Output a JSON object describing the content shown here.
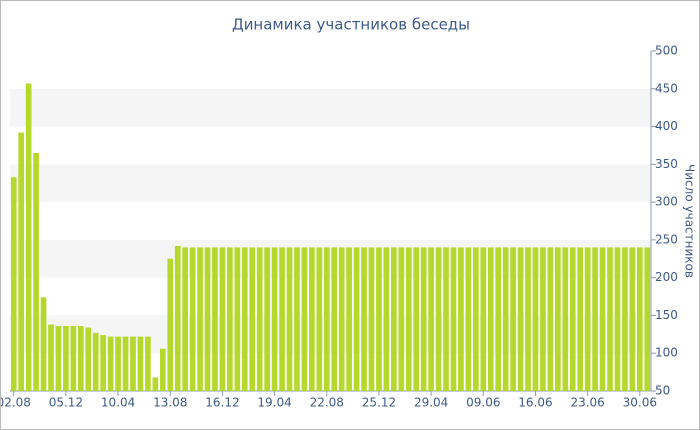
{
  "chart_data": {
    "type": "bar",
    "title": "Динамика участников беседы",
    "y_label": "Число участников",
    "categories": [
      "02.08",
      null,
      null,
      null,
      null,
      null,
      null,
      "05.12",
      null,
      null,
      null,
      null,
      null,
      null,
      "10.04",
      null,
      null,
      null,
      null,
      null,
      null,
      "13.08",
      null,
      null,
      null,
      null,
      null,
      null,
      "16.12",
      null,
      null,
      null,
      null,
      null,
      null,
      "19.04",
      null,
      null,
      null,
      null,
      null,
      null,
      "22.08",
      null,
      null,
      null,
      null,
      null,
      null,
      "25.12",
      null,
      null,
      null,
      null,
      null,
      null,
      "29.04",
      null,
      null,
      null,
      null,
      null,
      null,
      "09.06",
      null,
      null,
      null,
      null,
      null,
      null,
      "16.06",
      null,
      null,
      null,
      null,
      null,
      null,
      "23.06",
      null,
      null,
      null,
      null,
      null,
      null,
      "30.06",
      null
    ],
    "values": [
      333,
      392,
      457,
      365,
      174,
      138,
      136,
      136,
      136,
      136,
      134,
      127,
      124,
      122,
      122,
      122,
      122,
      122,
      122,
      68,
      106,
      225,
      242,
      240,
      240,
      240,
      240,
      240,
      240,
      240,
      240,
      240,
      240,
      240,
      240,
      240,
      240,
      240,
      240,
      240,
      240,
      240,
      240,
      240,
      240,
      240,
      240,
      240,
      240,
      240,
      240,
      240,
      240,
      240,
      240,
      240,
      240,
      240,
      240,
      240,
      240,
      240,
      240,
      240,
      240,
      240,
      240,
      240,
      240,
      240,
      240,
      240,
      240,
      240,
      240,
      240,
      240,
      240,
      240,
      240,
      240,
      240,
      240,
      240,
      240,
      240
    ],
    "color": "#b5d82c",
    "ylim": [
      50,
      500
    ],
    "yticks": [
      50,
      100,
      150,
      200,
      250,
      300,
      350,
      400,
      450,
      500
    ],
    "y_axis_side": "right",
    "grid": "bands"
  }
}
